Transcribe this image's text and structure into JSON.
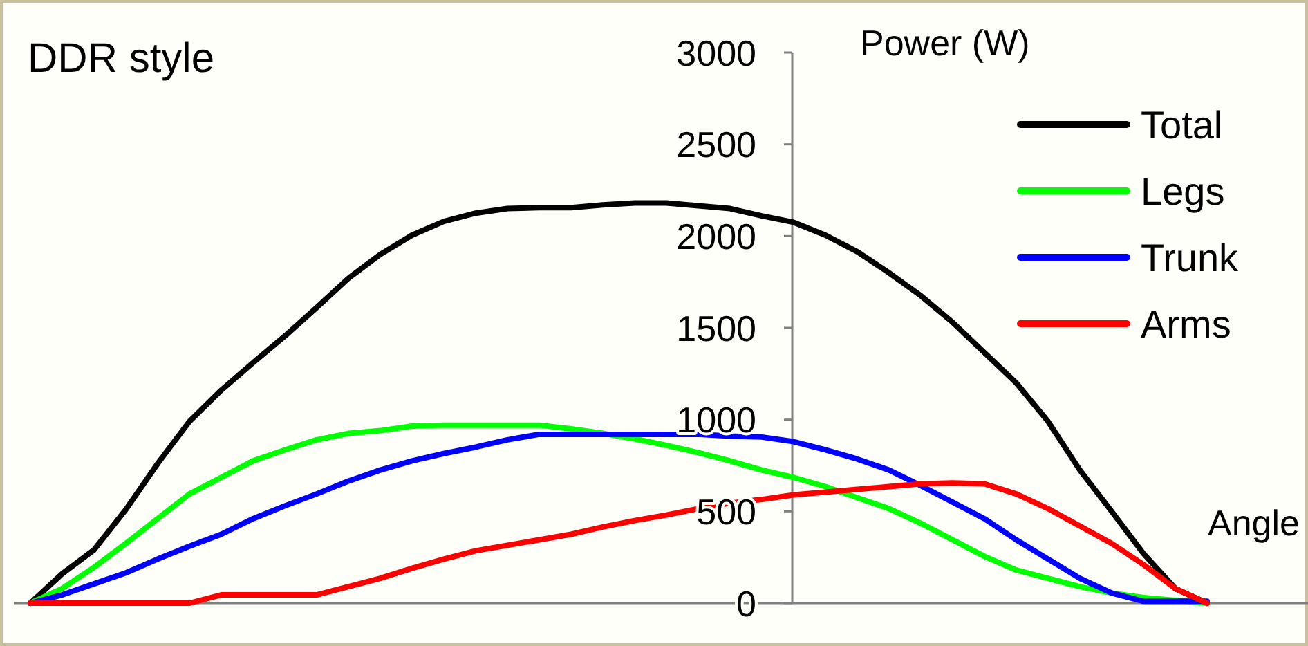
{
  "chart_data": {
    "type": "line",
    "title": "DDR style",
    "ylabel": "Power (W)",
    "xlabel": "Angle",
    "categories": [
      null,
      null,
      null,
      null,
      null,
      null,
      null,
      null,
      null,
      null,
      null,
      null,
      null,
      null,
      null,
      null,
      null,
      null,
      null,
      null,
      null,
      null,
      null,
      null,
      null,
      null,
      null,
      null,
      null,
      null,
      null,
      null,
      null,
      null,
      null,
      null,
      null,
      null
    ],
    "series": [
      {
        "name": "Total",
        "color": "#000000",
        "values": [
          0,
          160,
          290,
          510,
          760,
          990,
          1160,
          1310,
          1455,
          1610,
          1770,
          1900,
          2005,
          2080,
          2125,
          2150,
          2155,
          2155,
          2170,
          2180,
          2180,
          2165,
          2150,
          2110,
          2075,
          2005,
          1915,
          1800,
          1675,
          1530,
          1365,
          1200,
          990,
          725,
          500,
          270,
          80,
          0
        ]
      },
      {
        "name": "Legs",
        "color": "#00ff00",
        "values": [
          0,
          80,
          195,
          325,
          460,
          595,
          685,
          775,
          835,
          890,
          925,
          940,
          965,
          970,
          970,
          970,
          970,
          950,
          925,
          895,
          860,
          820,
          775,
          725,
          685,
          635,
          575,
          515,
          435,
          345,
          255,
          180,
          135,
          90,
          55,
          30,
          15,
          0
        ]
      },
      {
        "name": "Trunk",
        "color": "#0000ff",
        "values": [
          0,
          45,
          105,
          165,
          240,
          310,
          375,
          460,
          530,
          595,
          665,
          725,
          775,
          815,
          850,
          890,
          920,
          920,
          920,
          920,
          920,
          920,
          910,
          905,
          880,
          835,
          785,
          725,
          640,
          550,
          460,
          345,
          240,
          135,
          55,
          10,
          10,
          10
        ]
      },
      {
        "name": "Arms",
        "color": "#ff0000",
        "values": [
          0,
          0,
          0,
          0,
          0,
          0,
          45,
          45,
          45,
          45,
          90,
          135,
          190,
          240,
          285,
          315,
          345,
          375,
          415,
          450,
          480,
          515,
          545,
          565,
          590,
          605,
          620,
          635,
          650,
          655,
          650,
          595,
          515,
          420,
          325,
          210,
          80,
          0
        ]
      }
    ],
    "ylim": [
      0,
      3000
    ],
    "yticks": [
      0,
      500,
      1000,
      1500,
      2000,
      2500,
      3000
    ],
    "legend": "top right",
    "marker": "none",
    "line_style": "solid",
    "grid": false
  }
}
